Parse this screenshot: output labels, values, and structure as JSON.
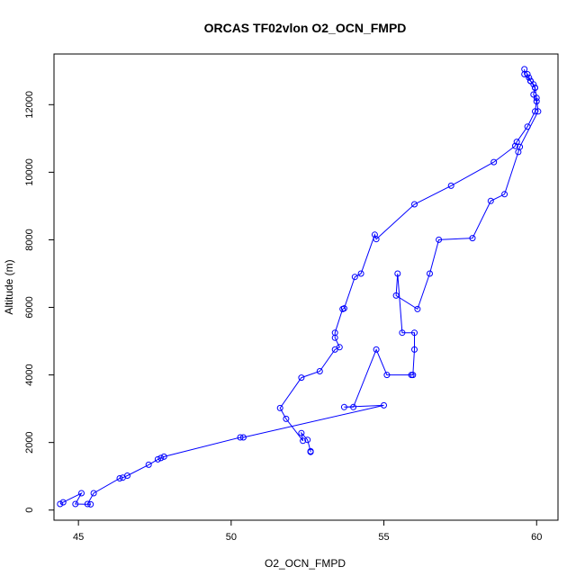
{
  "chart_data": {
    "type": "line",
    "title": "ORCAS TF02vlon O2_OCN_FMPD",
    "xlabel": "O2_OCN_FMPD",
    "ylabel": "Altitude (m)",
    "xlim": [
      44.2,
      60.7
    ],
    "ylim": [
      -300,
      13500
    ],
    "x_ticks": [
      45,
      50,
      55,
      60
    ],
    "y_ticks": [
      0,
      2000,
      4000,
      6000,
      8000,
      10000,
      12000
    ],
    "grid": false,
    "legend": "none",
    "marker": "open-circle",
    "colors": {
      "series": "#0000ff",
      "axes": "#000000",
      "background": "#ffffff"
    },
    "series": [
      {
        "x": [
          52.6,
          52.6,
          52.6,
          52.5,
          52.3,
          52.35,
          51.8,
          51.6,
          52.3,
          52.9,
          53.4,
          53.55,
          53.4,
          53.4,
          53.65,
          53.7,
          54.05,
          54.25,
          54.7,
          54.75,
          56.0,
          57.2,
          58.6,
          59.3,
          59.35,
          59.7,
          59.95,
          60.0,
          59.9,
          59.95,
          59.9,
          59.8,
          59.75,
          59.7
        ],
        "y": [
          1720,
          1730,
          1740,
          2080,
          2280,
          2050,
          2700,
          3020,
          3920,
          4110,
          4750,
          4820,
          5100,
          5250,
          5950,
          5970,
          6900,
          7000,
          8150,
          8020,
          9050,
          9600,
          10300,
          10780,
          10900,
          11350,
          11800,
          12100,
          12300,
          12500,
          12600,
          12700,
          12800,
          12900
        ]
      },
      {
        "x": [
          59.6,
          59.6,
          59.8,
          59.95,
          60.0,
          60.05,
          59.45,
          59.4,
          58.95,
          58.5,
          57.9,
          56.8,
          56.5,
          56.1,
          55.4,
          55.45,
          55.6,
          56.0,
          56.0,
          55.95,
          55.9,
          55.1,
          54.75,
          54.0,
          53.7,
          55.0,
          50.4,
          50.3,
          47.8,
          47.7,
          47.6,
          47.3,
          46.6,
          46.45,
          46.35,
          45.5,
          45.3,
          45.4,
          44.9,
          45.1,
          44.5,
          44.4
        ],
        "y": [
          13050,
          12900,
          12700,
          12500,
          12200,
          11800,
          10750,
          10600,
          9350,
          9150,
          8050,
          8000,
          7000,
          5950,
          6350,
          7000,
          5250,
          5250,
          4750,
          4000,
          4000,
          4000,
          4750,
          3050,
          3050,
          3100,
          2150,
          2150,
          1580,
          1540,
          1500,
          1340,
          1020,
          960,
          940,
          500,
          180,
          170,
          180,
          500,
          230,
          180
        ]
      }
    ]
  }
}
